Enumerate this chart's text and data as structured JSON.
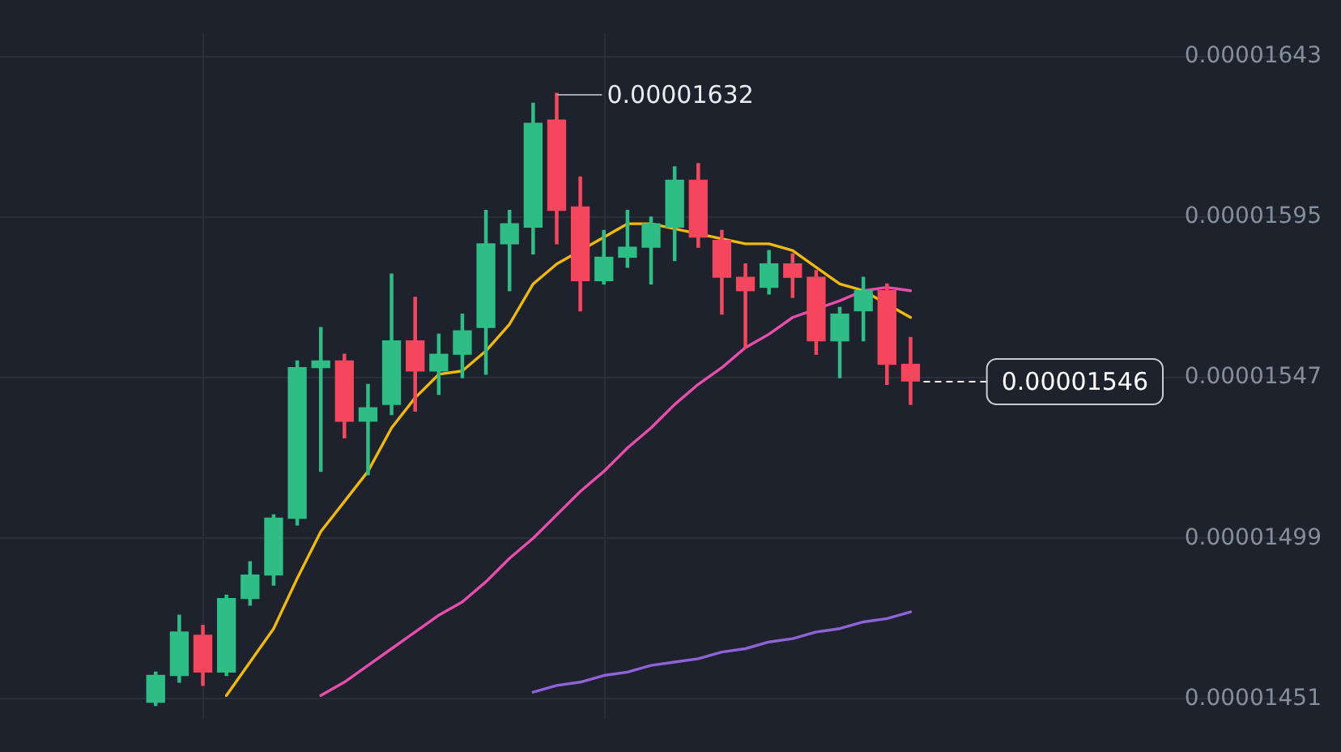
{
  "chart_data": {
    "type": "candlestick",
    "categories": [
      null,
      null,
      null,
      null,
      null,
      null,
      null,
      null,
      null,
      null,
      null,
      null,
      null,
      null,
      null,
      null,
      null,
      null,
      null,
      null,
      null,
      null,
      null,
      null,
      null,
      null,
      null,
      null,
      null,
      null,
      null,
      null,
      null
    ],
    "ohlc": [
      [
        1.45e-05,
        1.459e-05,
        1.449e-05,
        1.458e-05
      ],
      [
        1.458e-05,
        1.476e-05,
        1.456e-05,
        1.471e-05
      ],
      [
        1.47e-05,
        1.473e-05,
        1.455e-05,
        1.459e-05
      ],
      [
        1.459e-05,
        1.482e-05,
        1.458e-05,
        1.481e-05
      ],
      [
        1.481e-05,
        1.492e-05,
        1.479e-05,
        1.488e-05
      ],
      [
        1.488e-05,
        1.506e-05,
        1.485e-05,
        1.505e-05
      ],
      [
        1.505e-05,
        1.552e-05,
        1.503e-05,
        1.55e-05
      ],
      [
        1.55e-05,
        1.562e-05,
        1.519e-05,
        1.552e-05
      ],
      [
        1.552e-05,
        1.554e-05,
        1.529e-05,
        1.534e-05
      ],
      [
        1.534e-05,
        1.545e-05,
        1.518e-05,
        1.538e-05
      ],
      [
        1.539e-05,
        1.578e-05,
        1.536e-05,
        1.558e-05
      ],
      [
        1.558e-05,
        1.571e-05,
        1.537e-05,
        1.549e-05
      ],
      [
        1.549e-05,
        1.56e-05,
        1.542e-05,
        1.554e-05
      ],
      [
        1.554e-05,
        1.566e-05,
        1.547e-05,
        1.561e-05
      ],
      [
        1.562e-05,
        1.597e-05,
        1.548e-05,
        1.587e-05
      ],
      [
        1.587e-05,
        1.597e-05,
        1.573e-05,
        1.593e-05
      ],
      [
        1.592e-05,
        1.629e-05,
        1.584e-05,
        1.623e-05
      ],
      [
        1.624e-05,
        1.632e-05,
        1.587e-05,
        1.597e-05
      ],
      [
        1.598e-05,
        1.607e-05,
        1.567e-05,
        1.576e-05
      ],
      [
        1.576e-05,
        1.591e-05,
        1.575e-05,
        1.583e-05
      ],
      [
        1.583e-05,
        1.597e-05,
        1.58e-05,
        1.586e-05
      ],
      [
        1.586e-05,
        1.595e-05,
        1.575e-05,
        1.593e-05
      ],
      [
        1.592e-05,
        1.61e-05,
        1.582e-05,
        1.606e-05
      ],
      [
        1.606e-05,
        1.611e-05,
        1.586e-05,
        1.589e-05
      ],
      [
        1.588e-05,
        1.591e-05,
        1.566e-05,
        1.577e-05
      ],
      [
        1.577e-05,
        1.581e-05,
        1.556e-05,
        1.573e-05
      ],
      [
        1.574e-05,
        1.585e-05,
        1.572e-05,
        1.581e-05
      ],
      [
        1.581e-05,
        1.584e-05,
        1.571e-05,
        1.577e-05
      ],
      [
        1.577e-05,
        1.579e-05,
        1.554e-05,
        1.558e-05
      ],
      [
        1.558e-05,
        1.568e-05,
        1.547e-05,
        1.566e-05
      ],
      [
        1.567e-05,
        1.577e-05,
        1.558e-05,
        1.573e-05
      ],
      [
        1.573e-05,
        1.575e-05,
        1.545e-05,
        1.551e-05
      ],
      [
        1.551e-05,
        1.559e-05,
        1.539e-05,
        1.546e-05
      ]
    ],
    "colors": [
      "#2ebd85",
      "#2ebd85",
      "#f6465d",
      "#2ebd85",
      "#2ebd85",
      "#2ebd85",
      "#2ebd85",
      "#2ebd85",
      "#f6465d",
      "#2ebd85",
      "#2ebd85",
      "#f6465d",
      "#2ebd85",
      "#2ebd85",
      "#2ebd85",
      "#2ebd85",
      "#2ebd85",
      "#f6465d",
      "#f6465d",
      "#2ebd85",
      "#2ebd85",
      "#2ebd85",
      "#2ebd85",
      "#f6465d",
      "#f6465d",
      "#f6465d",
      "#2ebd85",
      "#f6465d",
      "#f6465d",
      "#2ebd85",
      "#2ebd85",
      "#f6465d",
      "#f6465d"
    ],
    "series": [
      {
        "type": "line",
        "color": "#f0b90b",
        "values": [
          null,
          null,
          null,
          1.452e-05,
          1.462e-05,
          1.472e-05,
          1.487e-05,
          1.501e-05,
          1.51e-05,
          1.519e-05,
          1.532e-05,
          1.541e-05,
          1.548e-05,
          1.549e-05,
          1.555e-05,
          1.563e-05,
          1.575e-05,
          1.581e-05,
          null,
          1.589e-05,
          1.593e-05,
          1.593e-05,
          null,
          null,
          null,
          1.587e-05,
          1.587e-05,
          1.585e-05,
          1.58e-05,
          1.575e-05,
          1.573e-05,
          null,
          1.565e-05
        ]
      },
      {
        "type": "line",
        "color": "#e94dab",
        "values": [
          null,
          null,
          null,
          null,
          null,
          null,
          null,
          1.452e-05,
          1.456e-05,
          1.461e-05,
          1.466e-05,
          1.471e-05,
          1.476e-05,
          1.48e-05,
          1.486e-05,
          1.493e-05,
          1.499e-05,
          1.506e-05,
          1.513e-05,
          1.519e-05,
          1.526e-05,
          1.532e-05,
          1.539e-05,
          1.545e-05,
          1.55e-05,
          1.556e-05,
          1.56e-05,
          1.565e-05,
          null,
          1.57e-05,
          1.573e-05,
          1.574e-05,
          1.573e-05
        ]
      },
      {
        "type": "line",
        "color": "#8f62d8",
        "values": [
          null,
          null,
          null,
          null,
          null,
          null,
          null,
          null,
          null,
          null,
          null,
          null,
          null,
          null,
          null,
          null,
          1.453e-05,
          1.455e-05,
          1.456e-05,
          1.458e-05,
          1.459e-05,
          1.461e-05,
          1.462e-05,
          1.463e-05,
          1.465e-05,
          1.466e-05,
          1.468e-05,
          1.469e-05,
          1.471e-05,
          1.472e-05,
          1.474e-05,
          1.475e-05,
          1.477e-05
        ]
      }
    ],
    "ylim": [
      1.445e-05,
      1.65e-05
    ],
    "yticks": [
      {
        "value": 1.451e-05,
        "label": "0.00001451"
      },
      {
        "value": 1.499e-05,
        "label": "0.00001499"
      },
      {
        "value": 1.547e-05,
        "label": "0.00001547"
      },
      {
        "value": 1.595e-05,
        "label": "0.00001595"
      },
      {
        "value": 1.643e-05,
        "label": "0.00001643"
      }
    ],
    "grid": true,
    "ref_lines": [
      {
        "axis": "y",
        "value": 1.546e-05,
        "label": "0.00001546",
        "color": "#ffffff",
        "line_style": "dashed"
      }
    ],
    "annotations": [
      "0.00001632"
    ]
  }
}
